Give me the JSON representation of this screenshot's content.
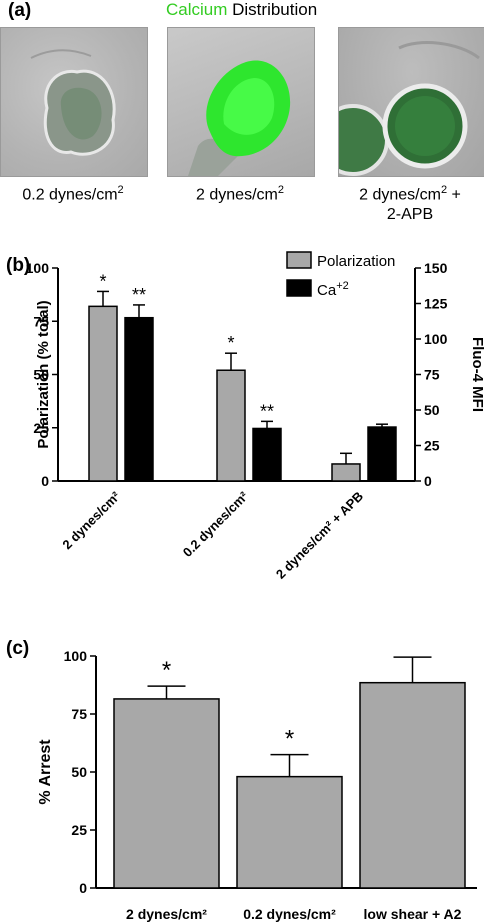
{
  "panel_a": {
    "label": "(a)",
    "title_green": "Calcium",
    "title_rest": " Distribution",
    "captions": [
      {
        "line1": "0.2 dynes/cm",
        "sup": "2",
        "line2": ""
      },
      {
        "line1": "2 dynes/cm",
        "sup": "2",
        "line2": ""
      },
      {
        "line1": "2 dynes/cm",
        "sup": "2",
        "tail": " +",
        "line2": "2-APB"
      }
    ]
  },
  "panel_b": {
    "label": "(b)"
  },
  "panel_c": {
    "label": "(c)"
  },
  "chart_data": [
    {
      "type": "bar",
      "categories": [
        "2 dynes/cm²",
        "0.2 dynes/cm²",
        "2 dynes/cm² + APB"
      ],
      "ylabel": "Polarization (% total)",
      "y2label": "Fluo-4 MFI",
      "ylim": [
        0,
        100
      ],
      "y2lim": [
        0,
        150
      ],
      "yticks": [
        0,
        25,
        50,
        75,
        100
      ],
      "y2ticks": [
        0,
        25,
        50,
        75,
        100,
        125,
        150
      ],
      "legend_position": "top-right",
      "series": [
        {
          "name": "Polarization",
          "axis": "left",
          "color": "#a8a8a8",
          "values": [
            82,
            52,
            8
          ],
          "errors": [
            7,
            8,
            5
          ],
          "markers": [
            "*",
            "*",
            ""
          ]
        },
        {
          "name": "Ca+2",
          "axis": "right",
          "color": "#000000",
          "values": [
            115,
            37,
            38
          ],
          "errors": [
            9,
            5,
            2
          ],
          "markers": [
            "**",
            "**",
            ""
          ]
        }
      ]
    },
    {
      "type": "bar",
      "categories": [
        "2 dynes/cm²",
        "0.2 dynes/cm²",
        "low shear + A2"
      ],
      "ylabel": "% Arrest",
      "ylim": [
        0,
        100
      ],
      "yticks": [
        0,
        25,
        50,
        75,
        100
      ],
      "series": [
        {
          "color": "#a8a8a8",
          "values": [
            81.5,
            48,
            88.5
          ],
          "errors": [
            5.5,
            9.5,
            11
          ],
          "markers": [
            "*",
            "*",
            ""
          ]
        }
      ]
    }
  ],
  "colors": {
    "green_text": "#33cc22",
    "bar_gray": "#a8a8a8",
    "bar_black": "#000000"
  }
}
